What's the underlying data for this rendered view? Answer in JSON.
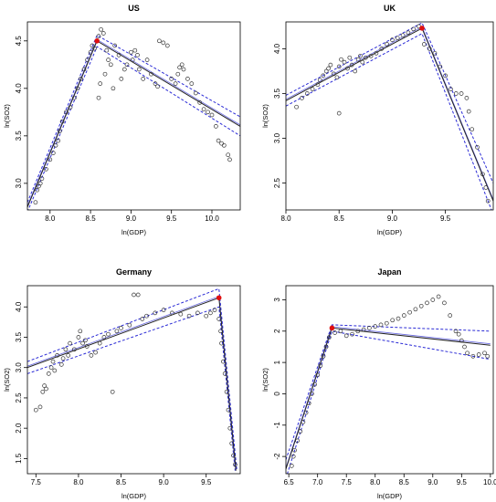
{
  "colors": {
    "points": "#333333",
    "fit": "#222222",
    "band": "#2b2bd6",
    "break": "#e01010"
  },
  "chart_data": [
    {
      "type": "scatter",
      "title": "US",
      "xlabel": "ln(GDP)",
      "ylabel": "ln(SO2)",
      "xlim": [
        7.72,
        10.35
      ],
      "ylim": [
        2.72,
        4.7
      ],
      "xticks": [
        8.0,
        8.5,
        9.0,
        9.5,
        10.0
      ],
      "yticks": [
        3.0,
        3.5,
        4.0,
        4.5
      ],
      "xtick_labels": [
        "8.0",
        "8.5",
        "9.0",
        "9.5",
        "10.0"
      ],
      "ytick_labels": [
        "3.0",
        "3.5",
        "4.0",
        "4.5"
      ],
      "breakpoint": [
        8.58,
        4.5
      ],
      "fit": [
        [
          7.72,
          2.75
        ],
        [
          8.58,
          4.5
        ],
        [
          10.35,
          3.6
        ]
      ],
      "band_upper": [
        [
          7.72,
          2.8
        ],
        [
          8.58,
          4.56
        ],
        [
          10.35,
          3.7
        ]
      ],
      "band_lower": [
        [
          7.72,
          2.7
        ],
        [
          8.58,
          4.44
        ],
        [
          10.35,
          3.5
        ]
      ],
      "points": [
        [
          7.82,
          2.8
        ],
        [
          7.84,
          2.93
        ],
        [
          7.86,
          2.97
        ],
        [
          7.88,
          3.0
        ],
        [
          7.9,
          3.05
        ],
        [
          7.95,
          3.15
        ],
        [
          8.0,
          3.25
        ],
        [
          8.04,
          3.32
        ],
        [
          8.07,
          3.4
        ],
        [
          8.1,
          3.45
        ],
        [
          8.12,
          3.55
        ],
        [
          8.15,
          3.65
        ],
        [
          8.2,
          3.75
        ],
        [
          8.25,
          3.8
        ],
        [
          8.3,
          3.9
        ],
        [
          8.34,
          4.0
        ],
        [
          8.38,
          4.1
        ],
        [
          8.42,
          4.2
        ],
        [
          8.46,
          4.3
        ],
        [
          8.5,
          4.38
        ],
        [
          8.52,
          4.45
        ],
        [
          8.55,
          4.42
        ],
        [
          8.6,
          4.55
        ],
        [
          8.63,
          4.62
        ],
        [
          8.66,
          4.58
        ],
        [
          8.7,
          4.4
        ],
        [
          8.72,
          4.3
        ],
        [
          8.75,
          4.25
        ],
        [
          8.78,
          4.0
        ],
        [
          8.6,
          3.9
        ],
        [
          8.62,
          4.05
        ],
        [
          8.68,
          4.15
        ],
        [
          8.8,
          4.45
        ],
        [
          8.85,
          4.35
        ],
        [
          8.88,
          4.1
        ],
        [
          8.92,
          4.2
        ],
        [
          8.95,
          4.25
        ],
        [
          9.0,
          4.38
        ],
        [
          9.02,
          4.3
        ],
        [
          9.05,
          4.4
        ],
        [
          9.08,
          4.35
        ],
        [
          9.1,
          4.2
        ],
        [
          9.15,
          4.1
        ],
        [
          9.2,
          4.3
        ],
        [
          9.25,
          4.15
        ],
        [
          9.3,
          4.05
        ],
        [
          9.33,
          4.02
        ],
        [
          9.35,
          4.5
        ],
        [
          9.4,
          4.48
        ],
        [
          9.45,
          4.45
        ],
        [
          9.5,
          4.1
        ],
        [
          9.55,
          4.05
        ],
        [
          9.58,
          4.15
        ],
        [
          9.6,
          4.22
        ],
        [
          9.63,
          4.25
        ],
        [
          9.65,
          4.2
        ],
        [
          9.7,
          4.1
        ],
        [
          9.75,
          4.05
        ],
        [
          9.8,
          3.95
        ],
        [
          9.85,
          3.85
        ],
        [
          9.9,
          3.78
        ],
        [
          9.95,
          3.75
        ],
        [
          10.0,
          3.72
        ],
        [
          10.05,
          3.6
        ],
        [
          10.08,
          3.45
        ],
        [
          10.12,
          3.42
        ],
        [
          10.15,
          3.4
        ],
        [
          10.2,
          3.3
        ],
        [
          10.22,
          3.25
        ]
      ]
    },
    {
      "type": "scatter",
      "title": "UK",
      "xlabel": "ln(GDP)",
      "ylabel": "ln(SO2)",
      "xlim": [
        8.0,
        9.95
      ],
      "ylim": [
        2.2,
        4.3
      ],
      "xticks": [
        8.0,
        8.5,
        9.0,
        9.5
      ],
      "yticks": [
        2.5,
        3.0,
        3.5,
        4.0
      ],
      "xtick_labels": [
        "8.0",
        "8.5",
        "9.0",
        "9.5"
      ],
      "ytick_labels": [
        "2.5",
        "3.0",
        "3.5",
        "4.0"
      ],
      "breakpoint": [
        9.28,
        4.23
      ],
      "fit": [
        [
          8.0,
          3.42
        ],
        [
          9.28,
          4.23
        ],
        [
          9.95,
          2.3
        ]
      ],
      "band_upper": [
        [
          8.0,
          3.48
        ],
        [
          9.28,
          4.29
        ],
        [
          9.95,
          2.5
        ]
      ],
      "band_lower": [
        [
          8.0,
          3.36
        ],
        [
          9.28,
          4.17
        ],
        [
          9.95,
          2.15
        ]
      ],
      "points": [
        [
          8.1,
          3.35
        ],
        [
          8.15,
          3.45
        ],
        [
          8.2,
          3.5
        ],
        [
          8.25,
          3.55
        ],
        [
          8.3,
          3.6
        ],
        [
          8.32,
          3.65
        ],
        [
          8.35,
          3.7
        ],
        [
          8.38,
          3.75
        ],
        [
          8.4,
          3.78
        ],
        [
          8.42,
          3.82
        ],
        [
          8.45,
          3.72
        ],
        [
          8.48,
          3.68
        ],
        [
          8.5,
          3.8
        ],
        [
          8.52,
          3.88
        ],
        [
          8.55,
          3.85
        ],
        [
          8.58,
          3.78
        ],
        [
          8.6,
          3.9
        ],
        [
          8.62,
          3.82
        ],
        [
          8.65,
          3.75
        ],
        [
          8.68,
          3.88
        ],
        [
          8.7,
          3.92
        ],
        [
          8.72,
          3.85
        ],
        [
          8.75,
          3.9
        ],
        [
          8.8,
          3.92
        ],
        [
          8.85,
          3.95
        ],
        [
          8.9,
          4.0
        ],
        [
          8.95,
          4.05
        ],
        [
          9.0,
          4.1
        ],
        [
          9.05,
          4.12
        ],
        [
          9.1,
          4.15
        ],
        [
          9.15,
          4.18
        ],
        [
          9.2,
          4.22
        ],
        [
          9.25,
          4.25
        ],
        [
          8.5,
          3.28
        ],
        [
          9.3,
          4.05
        ],
        [
          9.35,
          4.0
        ],
        [
          9.4,
          3.95
        ],
        [
          9.45,
          3.8
        ],
        [
          9.5,
          3.7
        ],
        [
          9.55,
          3.55
        ],
        [
          9.6,
          3.5
        ],
        [
          9.65,
          3.5
        ],
        [
          9.7,
          3.45
        ],
        [
          9.72,
          3.3
        ],
        [
          9.75,
          3.1
        ],
        [
          9.8,
          2.9
        ],
        [
          9.85,
          2.6
        ],
        [
          9.88,
          2.45
        ],
        [
          9.9,
          2.3
        ]
      ]
    },
    {
      "type": "scatter",
      "title": "Germany",
      "xlabel": "ln(GDP)",
      "ylabel": "ln(SO2)",
      "xlim": [
        7.4,
        9.9
      ],
      "ylim": [
        1.25,
        4.35
      ],
      "xticks": [
        7.5,
        8.0,
        8.5,
        9.0,
        9.5
      ],
      "yticks": [
        1.5,
        2.0,
        2.5,
        3.0,
        3.5,
        4.0
      ],
      "xtick_labels": [
        "7.5",
        "8.0",
        "8.5",
        "9.0",
        "9.5"
      ],
      "ytick_labels": [
        "1.5",
        "2.0",
        "2.5",
        "3.0",
        "3.5",
        "4.0"
      ],
      "breakpoint": [
        9.65,
        4.15
      ],
      "fit": [
        [
          7.4,
          3.0
        ],
        [
          9.65,
          4.15
        ],
        [
          9.85,
          1.3
        ]
      ],
      "band_upper": [
        [
          7.4,
          3.1
        ],
        [
          9.65,
          4.3
        ],
        [
          9.86,
          1.3
        ]
      ],
      "band_lower": [
        [
          7.4,
          2.9
        ],
        [
          9.65,
          4.0
        ],
        [
          9.84,
          1.3
        ]
      ],
      "points": [
        [
          7.5,
          2.3
        ],
        [
          7.55,
          2.35
        ],
        [
          7.58,
          2.6
        ],
        [
          7.6,
          2.7
        ],
        [
          7.62,
          2.65
        ],
        [
          7.65,
          2.9
        ],
        [
          7.68,
          3.0
        ],
        [
          7.7,
          3.1
        ],
        [
          7.72,
          2.95
        ],
        [
          7.75,
          3.2
        ],
        [
          7.8,
          3.05
        ],
        [
          7.82,
          3.15
        ],
        [
          7.85,
          3.3
        ],
        [
          7.88,
          3.2
        ],
        [
          7.9,
          3.4
        ],
        [
          7.95,
          3.3
        ],
        [
          8.0,
          3.5
        ],
        [
          8.02,
          3.6
        ],
        [
          8.05,
          3.4
        ],
        [
          8.08,
          3.45
        ],
        [
          8.1,
          3.35
        ],
        [
          8.15,
          3.2
        ],
        [
          8.2,
          3.25
        ],
        [
          8.25,
          3.4
        ],
        [
          8.3,
          3.5
        ],
        [
          8.35,
          3.55
        ],
        [
          8.4,
          2.6
        ],
        [
          8.45,
          3.6
        ],
        [
          8.5,
          3.65
        ],
        [
          8.6,
          3.7
        ],
        [
          8.65,
          4.2
        ],
        [
          8.7,
          4.2
        ],
        [
          8.75,
          3.8
        ],
        [
          8.8,
          3.85
        ],
        [
          8.9,
          3.9
        ],
        [
          9.0,
          3.95
        ],
        [
          9.1,
          3.9
        ],
        [
          9.2,
          3.88
        ],
        [
          9.3,
          3.85
        ],
        [
          9.4,
          3.9
        ],
        [
          9.5,
          3.85
        ],
        [
          9.55,
          3.9
        ],
        [
          9.6,
          3.95
        ],
        [
          9.65,
          3.8
        ],
        [
          9.67,
          3.6
        ],
        [
          9.68,
          3.4
        ],
        [
          9.7,
          3.1
        ],
        [
          9.72,
          2.9
        ],
        [
          9.74,
          2.6
        ],
        [
          9.76,
          2.3
        ],
        [
          9.78,
          2.0
        ],
        [
          9.8,
          1.75
        ],
        [
          9.82,
          1.55
        ],
        [
          9.84,
          1.4
        ]
      ]
    },
    {
      "type": "scatter",
      "title": "Japan",
      "xlabel": "ln(GDP)",
      "ylabel": "ln(SO2)",
      "xlim": [
        6.45,
        10.05
      ],
      "ylim": [
        -2.55,
        3.45
      ],
      "xticks": [
        6.5,
        7.0,
        7.5,
        8.0,
        8.5,
        9.0,
        9.5,
        10.0
      ],
      "yticks": [
        -2,
        -1,
        0,
        1,
        2,
        3
      ],
      "xtick_labels": [
        "6.5",
        "7.0",
        "7.5",
        "8.0",
        "8.5",
        "9.0",
        "9.5",
        "10.0"
      ],
      "ytick_labels": [
        "-2",
        "-1",
        "0",
        "1",
        "2",
        "3"
      ],
      "breakpoint": [
        7.25,
        2.1
      ],
      "fit": [
        [
          6.45,
          -2.4
        ],
        [
          7.25,
          2.1
        ],
        [
          10.0,
          1.55
        ]
      ],
      "band_upper": [
        [
          6.45,
          -2.1
        ],
        [
          7.25,
          2.2
        ],
        [
          10.0,
          2.0
        ]
      ],
      "band_lower": [
        [
          6.45,
          -2.7
        ],
        [
          7.25,
          2.0
        ],
        [
          10.0,
          1.1
        ]
      ],
      "points": [
        [
          6.55,
          -2.3
        ],
        [
          6.58,
          -2.0
        ],
        [
          6.6,
          -1.8
        ],
        [
          6.65,
          -1.5
        ],
        [
          6.7,
          -1.2
        ],
        [
          6.75,
          -0.9
        ],
        [
          6.8,
          -0.6
        ],
        [
          6.85,
          -0.3
        ],
        [
          6.9,
          0.0
        ],
        [
          6.95,
          0.3
        ],
        [
          7.0,
          0.6
        ],
        [
          7.05,
          0.9
        ],
        [
          7.1,
          1.2
        ],
        [
          7.15,
          1.5
        ],
        [
          7.2,
          1.8
        ],
        [
          7.3,
          1.95
        ],
        [
          7.4,
          2.0
        ],
        [
          7.5,
          1.85
        ],
        [
          7.6,
          1.9
        ],
        [
          7.7,
          2.0
        ],
        [
          7.8,
          2.05
        ],
        [
          7.9,
          2.1
        ],
        [
          8.0,
          2.15
        ],
        [
          8.1,
          2.2
        ],
        [
          8.2,
          2.25
        ],
        [
          8.3,
          2.35
        ],
        [
          8.4,
          2.4
        ],
        [
          8.5,
          2.5
        ],
        [
          8.6,
          2.6
        ],
        [
          8.7,
          2.7
        ],
        [
          8.8,
          2.8
        ],
        [
          8.9,
          2.9
        ],
        [
          9.0,
          3.0
        ],
        [
          9.1,
          3.1
        ],
        [
          9.2,
          2.9
        ],
        [
          9.3,
          2.5
        ],
        [
          9.4,
          2.0
        ],
        [
          9.45,
          1.9
        ],
        [
          9.5,
          1.7
        ],
        [
          9.55,
          1.5
        ],
        [
          9.6,
          1.3
        ],
        [
          9.7,
          1.2
        ],
        [
          9.8,
          1.25
        ],
        [
          9.9,
          1.3
        ],
        [
          9.95,
          1.2
        ]
      ]
    }
  ]
}
